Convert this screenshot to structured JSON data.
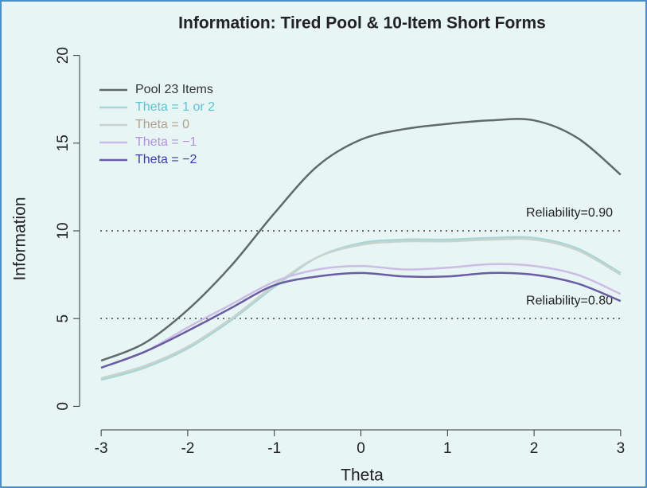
{
  "chart_data": {
    "type": "line",
    "title": "Information: Tired Pool & 10-Item Short Forms",
    "xlabel": "Theta",
    "ylabel": "Information",
    "x": [
      -3,
      -2.5,
      -2,
      -1.5,
      -1,
      -0.5,
      0,
      0.5,
      1,
      1.5,
      2,
      2.5,
      3
    ],
    "series": [
      {
        "name": "Pool 23 Items",
        "color": "#5f6b6b",
        "label_color": "#333333",
        "values": [
          2.6,
          3.6,
          5.5,
          8.0,
          11.0,
          13.7,
          15.2,
          15.8,
          16.1,
          16.3,
          16.3,
          15.3,
          13.2
        ]
      },
      {
        "name": "Theta = 1 or 2",
        "color": "#a6d6d8",
        "label_color": "#5cc3d3",
        "values": [
          1.5,
          2.2,
          3.3,
          4.9,
          6.8,
          8.5,
          9.3,
          9.5,
          9.5,
          9.6,
          9.6,
          9.0,
          7.6
        ]
      },
      {
        "name": "Theta = 0",
        "color": "#c9d3cc",
        "label_color": "#b3a08c",
        "values": [
          1.6,
          2.3,
          3.4,
          5.0,
          6.9,
          8.5,
          9.2,
          9.4,
          9.4,
          9.5,
          9.5,
          8.9,
          7.5
        ]
      },
      {
        "name": "Theta = −1",
        "color": "#cbbde3",
        "label_color": "#b58fe0",
        "values": [
          2.2,
          3.1,
          4.5,
          5.8,
          7.1,
          7.8,
          8.0,
          7.8,
          7.9,
          8.1,
          8.0,
          7.5,
          6.4
        ]
      },
      {
        "name": "Theta = −2",
        "color": "#6a5ca3",
        "label_color": "#3c3ca8",
        "values": [
          2.2,
          3.1,
          4.3,
          5.6,
          6.9,
          7.4,
          7.6,
          7.4,
          7.4,
          7.6,
          7.5,
          7.0,
          6.0
        ]
      }
    ],
    "reference_lines": [
      {
        "value": 10,
        "label": "Reliability=0.90"
      },
      {
        "value": 5,
        "label": "Reliability=0.80"
      }
    ],
    "xlim": [
      -3.24,
      3.24
    ],
    "ylim": [
      -0.8,
      20.8
    ],
    "xticks": [
      -3,
      -2,
      -1,
      0,
      1,
      2,
      3
    ],
    "yticks": [
      0,
      5,
      10,
      15,
      20
    ],
    "legend": "upper left"
  }
}
